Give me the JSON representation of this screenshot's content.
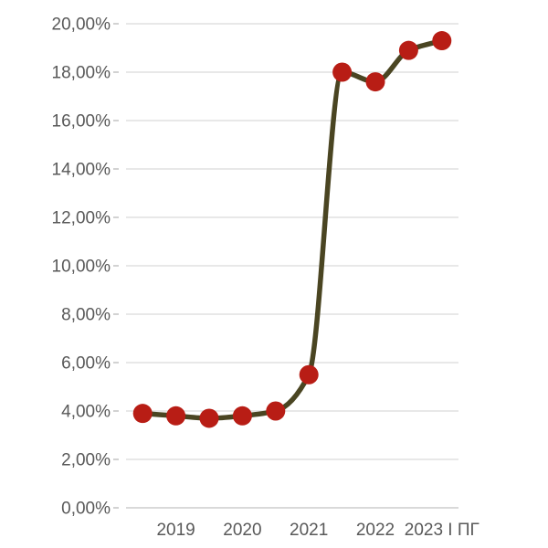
{
  "page": {
    "background_color": "#ffffff"
  },
  "chart_data": {
    "type": "line",
    "title": "",
    "xlabel": "",
    "ylabel": "",
    "categories": [
      "",
      "2019",
      "",
      "2020",
      "",
      "2021",
      "",
      "2022",
      "",
      "2023 I ПГ"
    ],
    "series": [
      {
        "name": "",
        "values": [
          3.9,
          3.8,
          3.7,
          3.8,
          4.0,
          5.5,
          18.0,
          17.6,
          18.9,
          19.3
        ]
      }
    ],
    "x_tick_labels_visible": [
      "2019",
      "2020",
      "2021",
      "2022",
      "2023 I ПГ"
    ],
    "y_tick_labels": [
      "0,00%",
      "2,00%",
      "4,00%",
      "6,00%",
      "8,00%",
      "10,00%",
      "12,00%",
      "14,00%",
      "16,00%",
      "18,00%",
      "20,00%"
    ],
    "y_tick_values": [
      0,
      2,
      4,
      6,
      8,
      10,
      12,
      14,
      16,
      18,
      20
    ],
    "ylim": [
      0,
      20
    ],
    "number_format": "percent-comma-2dp",
    "grid": true,
    "legend": "none",
    "smooth_line": true,
    "marker_style": "circle",
    "colors": {
      "line": "#4a4522",
      "marker": "#b81d15",
      "gridline": "#d9d9d9",
      "axis_line": "#c2c2c2",
      "tick_mark": "#b3b3b3",
      "label_text": "#595959"
    }
  }
}
